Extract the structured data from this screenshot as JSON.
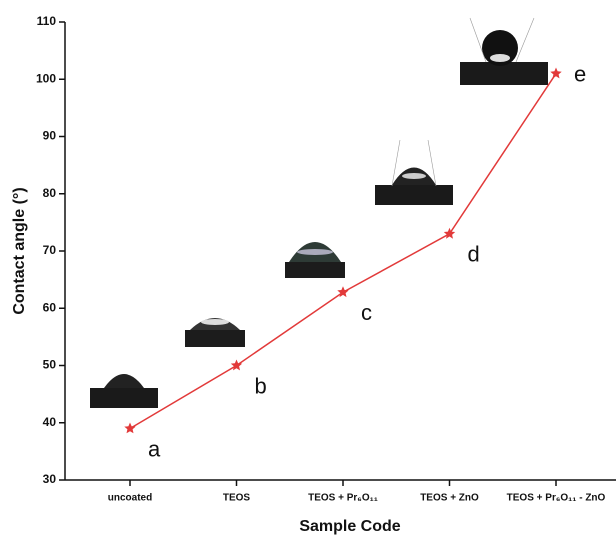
{
  "chart_data": {
    "type": "line",
    "x_label": "Sample Code",
    "y_label": "Contact angle (°)",
    "categories": [
      "uncoated",
      "TEOS",
      "TEOS + Pr₆O₁₁",
      "TEOS + ZnO",
      "TEOS + Pr₆O₁₁ - ZnO"
    ],
    "series": [
      {
        "color": "#e23a3a",
        "values": [
          39,
          50,
          62.8,
          73,
          101
        ]
      }
    ],
    "annotations": [
      "a",
      "b",
      "c",
      "d",
      "e"
    ],
    "ylim": [
      30,
      110
    ],
    "yticks": [
      30,
      40,
      50,
      60,
      70,
      80,
      90,
      100,
      110
    ]
  }
}
